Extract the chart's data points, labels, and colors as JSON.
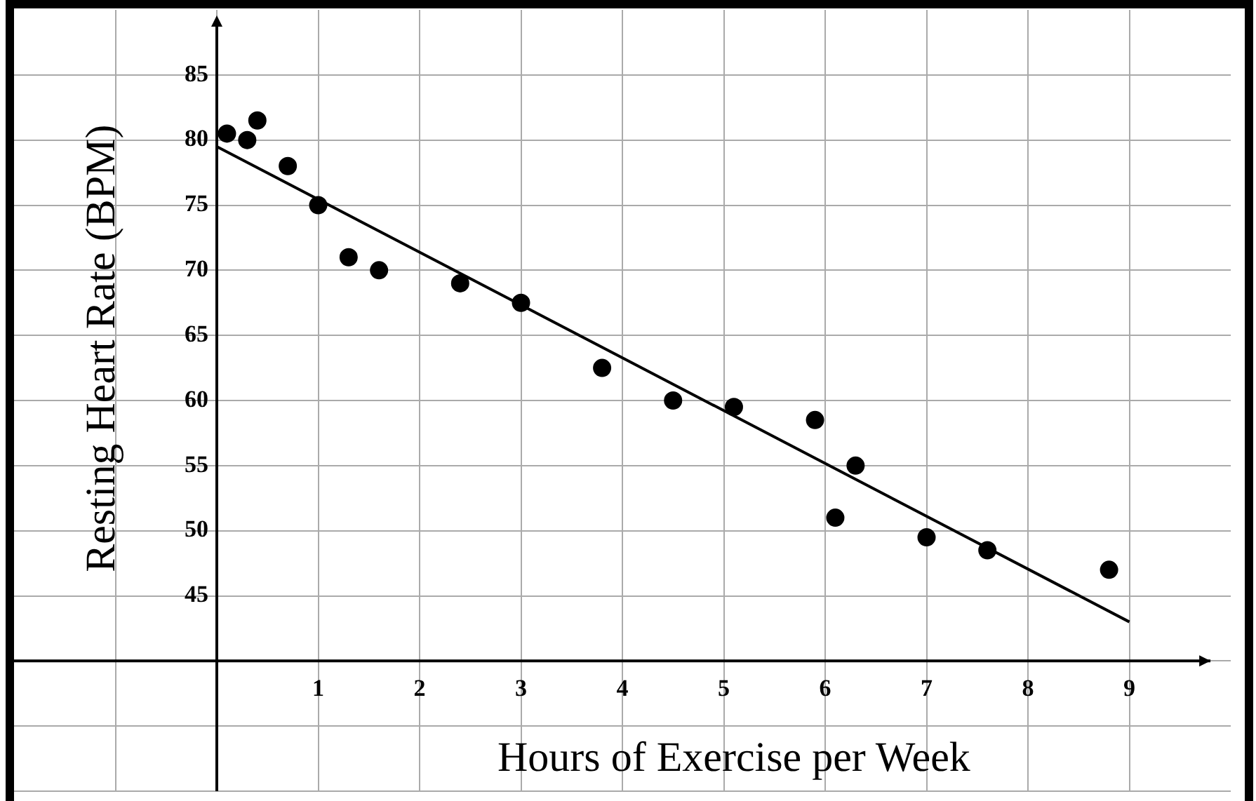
{
  "chart_data": {
    "type": "scatter",
    "xlabel": "Hours of Exercise per Week",
    "ylabel": "Resting Heart Rate (BPM)",
    "xlim": [
      -2,
      10
    ],
    "ylim": [
      30,
      90
    ],
    "xticks": [
      {
        "value": -1,
        "label": null
      },
      {
        "value": 0,
        "label": null
      },
      1,
      2,
      3,
      4,
      5,
      6,
      7,
      8,
      9
    ],
    "yticks": [
      {
        "value": 30,
        "label": null
      },
      {
        "value": 35,
        "label": null
      },
      {
        "value": 40,
        "label": null
      },
      45,
      50,
      55,
      60,
      65,
      70,
      75,
      80,
      85
    ],
    "grid": true,
    "legend": false,
    "marker": "circle",
    "series": [
      {
        "color": "#000000",
        "x": [
          0.1,
          0.3,
          0.4,
          0.7,
          1,
          1.3,
          1.6,
          2.4,
          3,
          3.8,
          4.5,
          5.1,
          5.9,
          6.1,
          6.3,
          7,
          7.6,
          8.8
        ],
        "values": [
          80.5,
          80,
          81.5,
          78,
          75,
          71,
          70,
          69,
          67.5,
          62.5,
          60,
          59.5,
          58.5,
          51,
          55,
          49.5,
          48.5,
          47
        ]
      },
      {
        "type": "line",
        "color": "#000000",
        "marker": "none",
        "x": [
          0,
          9
        ],
        "values": [
          79.5,
          43
        ]
      }
    ]
  }
}
